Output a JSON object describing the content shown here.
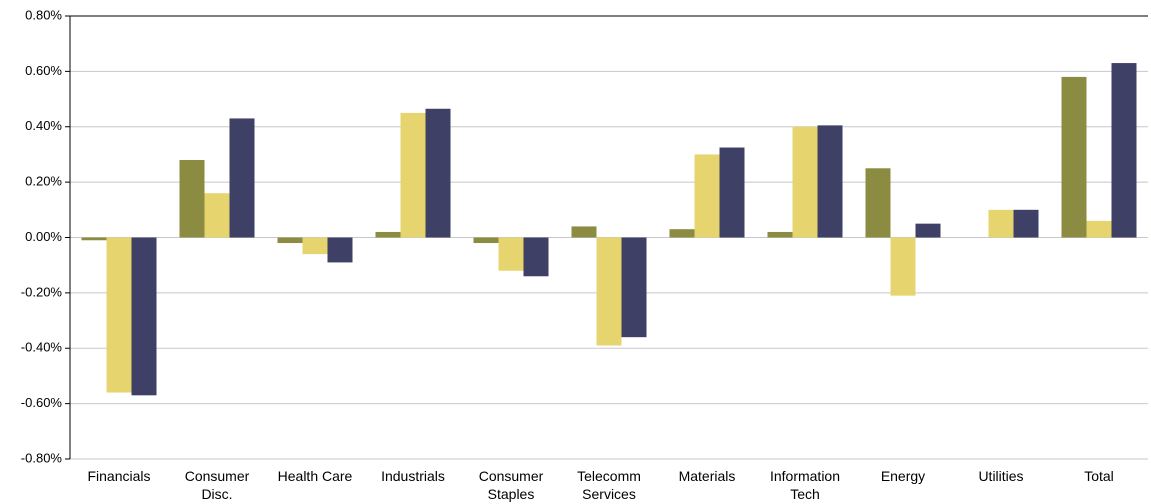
{
  "chart_data": {
    "type": "bar",
    "categories": [
      "Financials",
      "Consumer Disc.",
      "Health Care",
      "Industrials",
      "Consumer Staples",
      "Telecomm Services",
      "Materials",
      "Information Tech",
      "Energy",
      "Utilities",
      "Total"
    ],
    "series": [
      {
        "color": "#8b8c41",
        "values": [
          -0.01,
          0.28,
          -0.02,
          0.02,
          -0.02,
          0.04,
          0.03,
          0.02,
          0.25,
          0,
          0.58
        ]
      },
      {
        "color": "#e6d46f",
        "values": [
          -0.56,
          0.16,
          -0.06,
          0.45,
          -0.12,
          -0.39,
          0.3,
          0.4,
          -0.21,
          0.1,
          0.06
        ]
      },
      {
        "color": "#3e4066",
        "values": [
          -0.57,
          0.43,
          -0.09,
          0.465,
          -0.14,
          -0.36,
          0.325,
          0.405,
          0.05,
          0.1,
          0.63
        ]
      }
    ],
    "ylim": [
      -0.8,
      0.8
    ],
    "yticks": [
      {
        "value": -0.8,
        "label": "-0.80%"
      },
      {
        "value": -0.6,
        "label": "-0.60%"
      },
      {
        "value": -0.4,
        "label": "-0.40%"
      },
      {
        "value": -0.2,
        "label": "-0.20%"
      },
      {
        "value": 0,
        "label": "0.00%"
      },
      {
        "value": 0.2,
        "label": "0.20%"
      },
      {
        "value": 0.4,
        "label": "0.40%"
      },
      {
        "value": 0.6,
        "label": "0.60%"
      },
      {
        "value": 0.8,
        "label": "0.80%"
      }
    ],
    "grid": true
  }
}
